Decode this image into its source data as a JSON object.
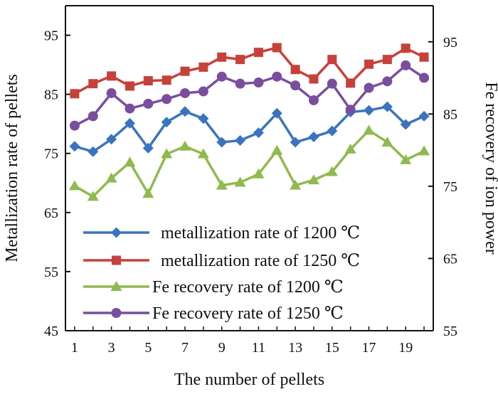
{
  "chart_data": {
    "type": "line",
    "xlabel": "The number of  pellets",
    "ylabel_left": "Metallization rate of pellets",
    "ylabel_right": "Fe recovery of ion power",
    "x": [
      1,
      2,
      3,
      4,
      5,
      6,
      7,
      8,
      9,
      10,
      11,
      12,
      13,
      14,
      15,
      16,
      17,
      18,
      19,
      20
    ],
    "x_tick_labels": [
      "1",
      "3",
      "5",
      "7",
      "9",
      "11",
      "13",
      "15",
      "17",
      "19"
    ],
    "x_tick_values": [
      1,
      3,
      5,
      7,
      9,
      11,
      13,
      15,
      17,
      19
    ],
    "xlim": [
      0.5,
      20.5
    ],
    "ylim_left": [
      45,
      100
    ],
    "yticks_left": [
      "45",
      "55",
      "65",
      "75",
      "85",
      "95"
    ],
    "ylim_right": [
      55,
      100
    ],
    "yticks_right": [
      "55",
      "65",
      "75",
      "85",
      "95"
    ],
    "series": [
      {
        "name": "metallization rate of 1200 ℃",
        "color": "#3a74be",
        "marker": "diamond",
        "axis": "left",
        "values": [
          76.2,
          75.3,
          77.4,
          80.1,
          75.9,
          80.3,
          82.1,
          80.9,
          76.9,
          77.2,
          78.5,
          81.8,
          76.9,
          77.8,
          78.8,
          82.0,
          82.3,
          82.9,
          79.9,
          81.3
        ]
      },
      {
        "name": "metallization rate of 1250 ℃",
        "color": "#c7413b",
        "marker": "square",
        "axis": "left",
        "values": [
          85.1,
          86.8,
          88.1,
          86.4,
          87.3,
          87.4,
          88.9,
          89.6,
          91.3,
          90.9,
          92.1,
          92.9,
          89.2,
          87.6,
          90.9,
          86.9,
          90.1,
          90.9,
          92.8,
          91.3
        ]
      },
      {
        "name": "Fe recovery rate of 1200 ℃",
        "color": "#8fba4e",
        "marker": "triangle",
        "axis": "left",
        "values": [
          69.5,
          67.7,
          70.8,
          73.5,
          68.2,
          74.9,
          76.2,
          74.9,
          69.6,
          70.1,
          71.5,
          75.5,
          69.6,
          70.5,
          71.9,
          75.7,
          78.9,
          76.9,
          73.9,
          75.4
        ]
      },
      {
        "name": "Fe recovery rate of 1250 ℃",
        "color": "#7a4e9e",
        "marker": "circle",
        "axis": "left",
        "values": [
          79.7,
          81.3,
          85.2,
          82.6,
          83.4,
          84.2,
          85.2,
          85.5,
          88.0,
          86.8,
          87.0,
          88.0,
          86.5,
          84.0,
          86.8,
          82.4,
          86.1,
          87.2,
          89.9,
          87.8
        ]
      }
    ],
    "legend": {
      "position": "bottom-center",
      "entries": [
        "metallization rate of 1200 ℃",
        "metallization rate of 1250 ℃",
        "Fe recovery rate of 1200 ℃",
        "Fe recovery rate of 1250 ℃"
      ]
    }
  }
}
